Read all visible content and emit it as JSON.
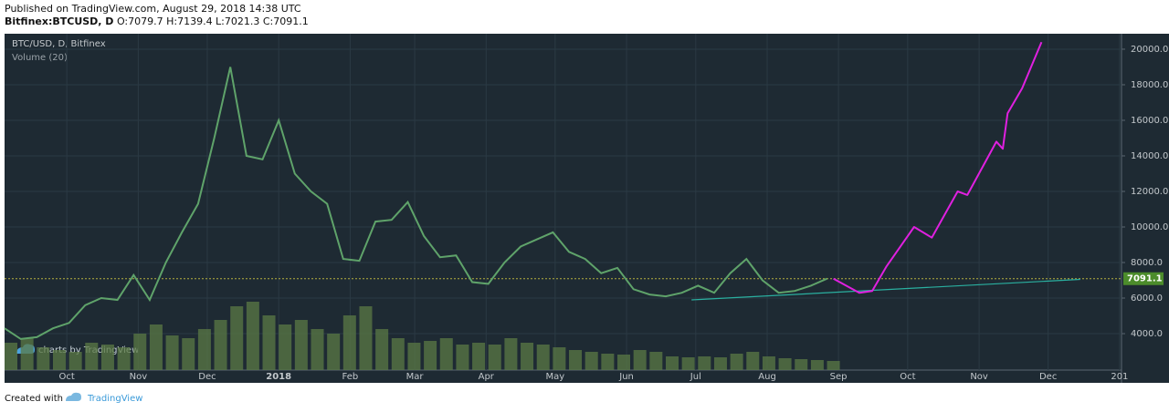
{
  "header": {
    "published": "Published on TradingView.com, August 29, 2018 14:38 UTC",
    "symbol": "Bitfinex:BTCUSD, D",
    "ohlc": "O:7079.7 H:7139.4 L:7021.3 C:7091.1"
  },
  "chart_data": {
    "type": "line",
    "legend": "BTC/USD, D, Bitfinex",
    "volume_label": "Volume (20)",
    "watermark": "charts by TradingView",
    "x": [
      0,
      1,
      2,
      3,
      4,
      5,
      6,
      7,
      8,
      9,
      10,
      11,
      12,
      13,
      14,
      15,
      16,
      17,
      18,
      19,
      20,
      21,
      22,
      23,
      24,
      25,
      26,
      27,
      28,
      29,
      30,
      31,
      32,
      33,
      34,
      35,
      36,
      37,
      38,
      39,
      40,
      41,
      42,
      43,
      44,
      45,
      46,
      47,
      48,
      49,
      50,
      51
    ],
    "series": [
      {
        "color": "#5fa36a",
        "values": [
          4300,
          3700,
          3800,
          4300,
          4600,
          5600,
          6000,
          5900,
          7300,
          5900,
          8000,
          9700,
          11300,
          15000,
          19000,
          14000,
          13800,
          16000,
          13000,
          12000,
          11300,
          8200,
          8100,
          10300,
          10400,
          11400,
          9500,
          8300,
          8400,
          6900,
          6800,
          8000,
          8900,
          9300,
          9700,
          8600,
          8200,
          7400,
          7700,
          6500,
          6200,
          6100,
          6300,
          6700,
          6300,
          7400,
          8200,
          7000,
          6300,
          6400,
          6700,
          7091.1
        ]
      }
    ],
    "volume": {
      "color": "#5b7a46",
      "lim": [
        0,
        100
      ],
      "values": [
        30,
        35,
        25,
        22,
        20,
        30,
        28,
        25,
        40,
        50,
        38,
        35,
        45,
        55,
        70,
        75,
        60,
        50,
        55,
        45,
        40,
        60,
        70,
        45,
        35,
        30,
        32,
        35,
        28,
        30,
        28,
        35,
        30,
        28,
        25,
        22,
        20,
        18,
        17,
        22,
        20,
        15,
        14,
        15,
        14,
        18,
        20,
        15,
        13,
        12,
        11,
        10
      ]
    },
    "projection": {
      "color": "#e020e0",
      "x": [
        51.4,
        53,
        53.8,
        54.7,
        56.4,
        57.5,
        59.1,
        59.7,
        61.5,
        61.9,
        62.2,
        63.1,
        64.3
      ],
      "values": [
        7091.1,
        6300,
        6400,
        7800,
        10000,
        9400,
        12000,
        11800,
        14800,
        14400,
        16400,
        17800,
        20400
      ]
    },
    "trendline": {
      "color": "#2ab0a0",
      "x": [
        42.6,
        66.7
      ],
      "values": [
        5900,
        7050
      ]
    },
    "last_price": {
      "value": 7091.1,
      "label": "7091.1",
      "color": "#4c8c2b"
    },
    "xlim": [
      0,
      69.26
    ],
    "ylim": [
      1950,
      20870
    ],
    "xticks": [
      {
        "value": 3.86,
        "label": "Oct"
      },
      {
        "value": 8.29,
        "label": "Nov"
      },
      {
        "value": 12.57,
        "label": "Dec"
      },
      {
        "value": 17,
        "label": "2018"
      },
      {
        "value": 21.43,
        "label": "Feb"
      },
      {
        "value": 25.43,
        "label": "Mar"
      },
      {
        "value": 29.86,
        "label": "Apr"
      },
      {
        "value": 34.14,
        "label": "May"
      },
      {
        "value": 38.57,
        "label": "Jun"
      },
      {
        "value": 42.86,
        "label": "Jul"
      },
      {
        "value": 47.29,
        "label": "Aug"
      },
      {
        "value": 51.71,
        "label": "Sep"
      },
      {
        "value": 56,
        "label": "Oct"
      },
      {
        "value": 60.43,
        "label": "Nov"
      },
      {
        "value": 64.71,
        "label": "Dec"
      },
      {
        "value": 69.14,
        "label": "201"
      }
    ],
    "yticks": [
      {
        "value": 4000,
        "label": "4000.0"
      },
      {
        "value": 6000,
        "label": "6000.0"
      },
      {
        "value": 8000,
        "label": "8000.0"
      },
      {
        "value": 10000,
        "label": "10000.0"
      },
      {
        "value": 12000,
        "label": "12000.0"
      },
      {
        "value": 14000,
        "label": "14000.0"
      },
      {
        "value": 16000,
        "label": "16000.0"
      },
      {
        "value": 18000,
        "label": "18000.0"
      },
      {
        "value": 20000,
        "label": "20000.0"
      }
    ],
    "grid": true
  },
  "footer": {
    "created": "Created with",
    "brand": "TradingView"
  }
}
